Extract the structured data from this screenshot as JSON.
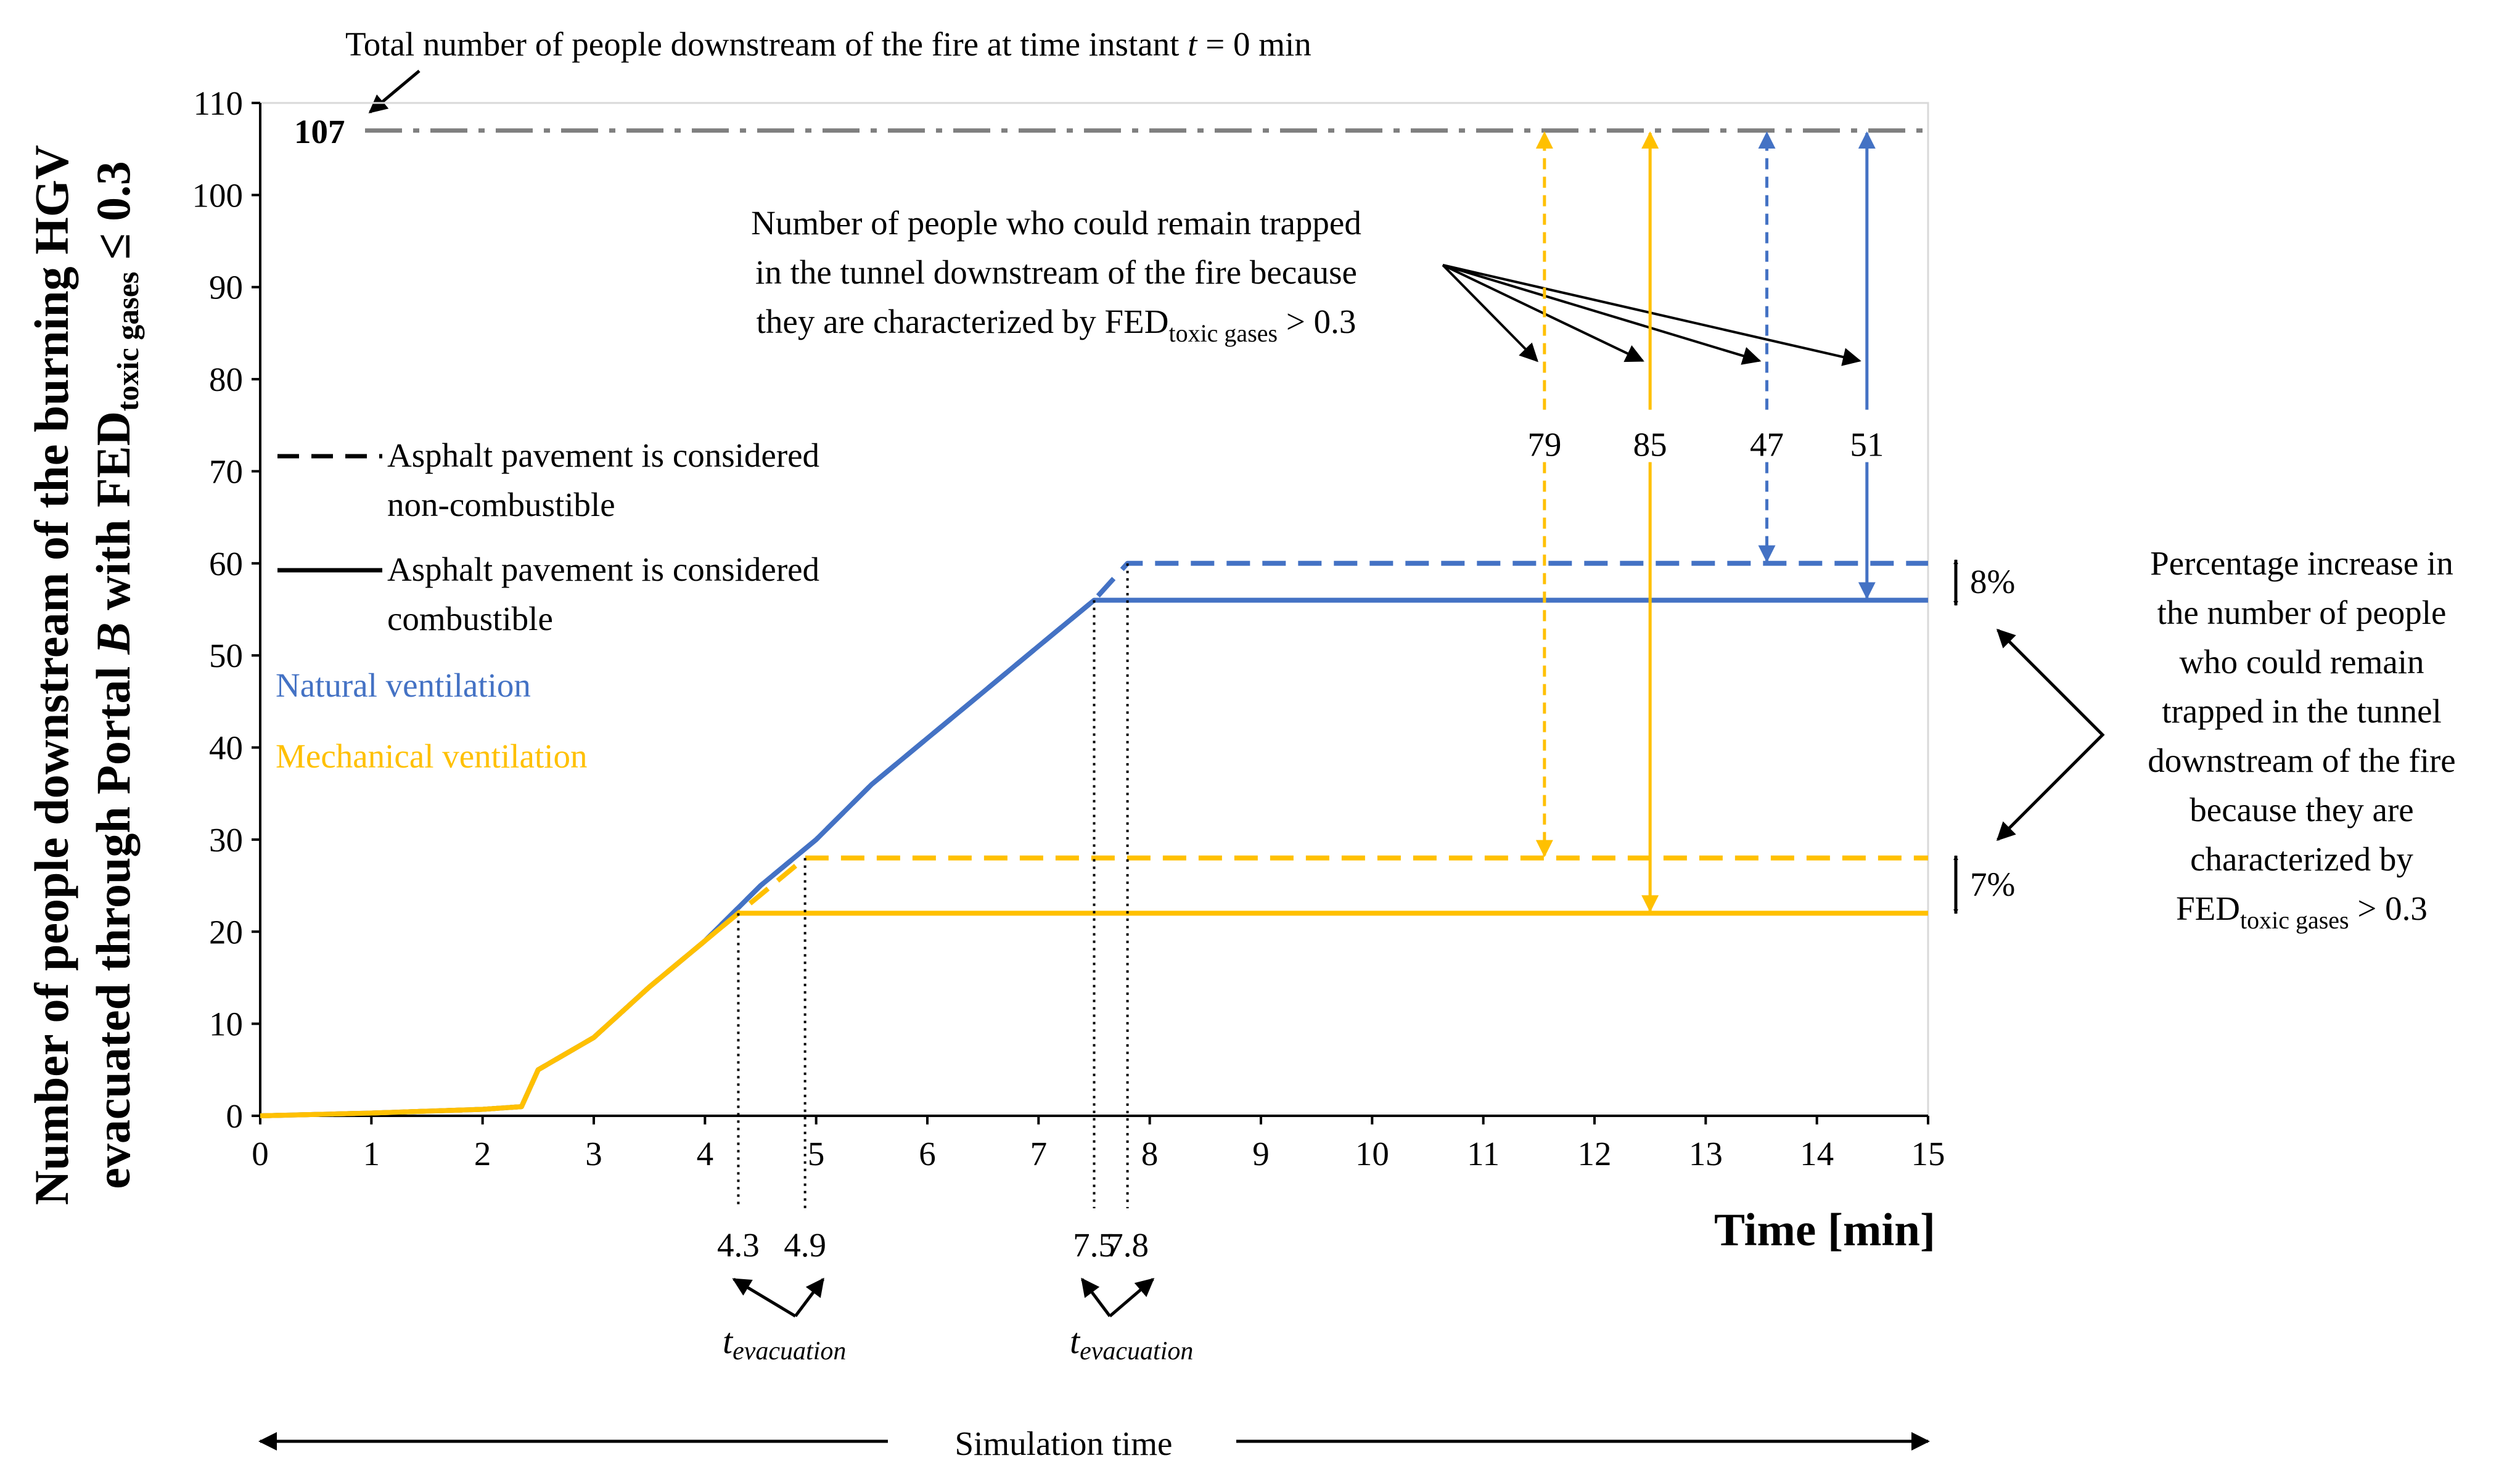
{
  "chart_data": {
    "type": "line",
    "title": "",
    "top_note": {
      "text_before_t": "Total number of people downstream of the fire at time instant ",
      "t_symbol": "t",
      "text_after_t": " = 0 min"
    },
    "ylabel": {
      "line1": "Number of people downstream of the burning HGV",
      "line2_prefix": "evacuated through Portal ",
      "line2_portal": "B",
      "line2_mid": " with FED",
      "line2_sub": "toxic gases",
      "line2_suffix": " ≤ 0.3"
    },
    "xlabel": "Time [min]",
    "xlim": [
      0,
      15
    ],
    "ylim": [
      0,
      110
    ],
    "xticks": [
      "0",
      "1",
      "2",
      "3",
      "4",
      "5",
      "6",
      "7",
      "8",
      "9",
      "10",
      "11",
      "12",
      "13",
      "14",
      "15"
    ],
    "yticks": [
      "0",
      "10",
      "20",
      "30",
      "40",
      "50",
      "60",
      "70",
      "80",
      "90",
      "100",
      "110"
    ],
    "grid": false,
    "total_line": {
      "value": 107,
      "label": "107"
    },
    "colors": {
      "natural": "#4472C4",
      "mechanical": "#FFC000",
      "total": "#7F7F7F"
    },
    "series": [
      {
        "ventilation": "natural",
        "pavement": "non-combustible",
        "dash": true,
        "x": [
          0,
          1,
          2,
          2.35,
          2.5,
          3,
          3.5,
          4,
          4.5,
          5,
          5.5,
          6,
          6.5,
          7,
          7.5,
          7.8,
          15
        ],
        "y": [
          0,
          0.3,
          0.7,
          1,
          5,
          8.5,
          14,
          19,
          25,
          30,
          36,
          41,
          46,
          51,
          56,
          60,
          60
        ]
      },
      {
        "ventilation": "natural",
        "pavement": "combustible",
        "dash": false,
        "x": [
          0,
          1,
          2,
          2.35,
          2.5,
          3,
          3.5,
          4,
          4.5,
          5,
          5.5,
          6,
          6.5,
          7,
          7.5,
          15
        ],
        "y": [
          0,
          0.3,
          0.7,
          1,
          5,
          8.5,
          14,
          19,
          25,
          30,
          36,
          41,
          46,
          51,
          56,
          56
        ]
      },
      {
        "ventilation": "mechanical",
        "pavement": "non-combustible",
        "dash": true,
        "x": [
          0,
          1,
          2,
          2.35,
          2.5,
          3,
          3.5,
          4,
          4.5,
          4.9,
          15
        ],
        "y": [
          0,
          0.3,
          0.7,
          1,
          5,
          8.5,
          14,
          19,
          24,
          28,
          28
        ]
      },
      {
        "ventilation": "mechanical",
        "pavement": "combustible",
        "dash": false,
        "x": [
          0,
          1,
          2,
          2.35,
          2.5,
          3,
          3.5,
          4,
          4.3,
          15
        ],
        "y": [
          0,
          0.3,
          0.7,
          1,
          5,
          8.5,
          14,
          19,
          22,
          22
        ]
      }
    ],
    "legend": {
      "dashed_line1": "Asphalt pavement is considered",
      "dashed_line2": "non-combustible",
      "solid_line1": "Asphalt pavement is considered",
      "solid_line2": "combustible",
      "natural": "Natural ventilation",
      "mechanical": "Mechanical ventilation"
    },
    "trapped_annotation": {
      "line1": "Number of people who could remain trapped",
      "line2": "in the tunnel downstream of the fire because",
      "line3_prefix": "they are characterized by FED",
      "line3_sub": "toxic gases",
      "line3_suffix": " > 0.3"
    },
    "trapped_arrows": [
      {
        "label": "79",
        "x": 11.55,
        "from": 107,
        "to": 28,
        "ventilation": "mechanical",
        "dash": true
      },
      {
        "label": "85",
        "x": 12.5,
        "from": 107,
        "to": 22,
        "ventilation": "mechanical",
        "dash": false
      },
      {
        "label": "47",
        "x": 13.55,
        "from": 107,
        "to": 60,
        "ventilation": "natural",
        "dash": true
      },
      {
        "label": "51",
        "x": 14.45,
        "from": 107,
        "to": 56,
        "ventilation": "natural",
        "dash": false
      }
    ],
    "percent_increase": {
      "natural": "8%",
      "mechanical": "7%",
      "line1": "Percentage increase in",
      "line2": "the number of people",
      "line3": "who could remain",
      "line4": "trapped in the tunnel",
      "line5": "downstream of the fire",
      "line6": "because they are",
      "line7": "characterized by",
      "line8_prefix": "FED",
      "line8_sub": "toxic gases",
      "line8_suffix": " > 0.3"
    },
    "evacuation_times": [
      {
        "x": 4.3,
        "label": "4.3"
      },
      {
        "x": 4.9,
        "label": "4.9"
      },
      {
        "x": 7.5,
        "label": "7.5"
      },
      {
        "x": 7.8,
        "label": "7.8"
      }
    ],
    "t_evacuation": {
      "t": "t",
      "sub": "evacuation"
    },
    "simulation_time": "Simulation time"
  }
}
